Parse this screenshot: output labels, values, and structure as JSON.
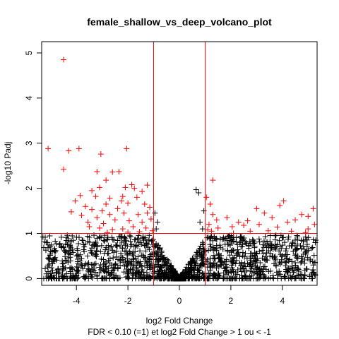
{
  "chart_data": {
    "type": "scatter",
    "title": "female_shallow_vs_deep_volcano_plot",
    "xlabel": "log2 Fold Change",
    "subtitle": "FDR < 0.10 (=1) et log2 Fold Change > 1 ou < -1",
    "ylabel": "-log10 Padj",
    "xlim": [
      -5.35,
      5.35
    ],
    "ylim": [
      -0.15,
      5.25
    ],
    "x_ticks": [
      "-4",
      "-2",
      "0",
      "2",
      "4"
    ],
    "y_ticks": [
      "0",
      "1",
      "2",
      "3",
      "4",
      "5"
    ],
    "thresholds": {
      "x": [
        -1,
        1
      ],
      "y": 1
    },
    "colors": {
      "significant": "#ff0000",
      "other": "#000000",
      "threshold_lines": "#ff0000",
      "axes": "#000000"
    },
    "marker": "plus",
    "series": [
      {
        "color": "#ff0000",
        "points": [
          [
            -4.5,
            4.85
          ],
          [
            -5.1,
            2.88
          ],
          [
            -4.3,
            2.83
          ],
          [
            -3.9,
            2.88
          ],
          [
            -4.5,
            2.42
          ],
          [
            -3.05,
            2.76
          ],
          [
            -2.05,
            2.88
          ],
          [
            -3.2,
            2.37
          ],
          [
            -2.6,
            2.36
          ],
          [
            -2.35,
            2.37
          ],
          [
            -2.85,
            2.18
          ],
          [
            -3.1,
            2.02
          ],
          [
            -2.1,
            2.02
          ],
          [
            -1.85,
            2.08
          ],
          [
            -1.75,
            2.0
          ],
          [
            -1.25,
            2.07
          ],
          [
            -3.4,
            1.95
          ],
          [
            -1.45,
            1.93
          ],
          [
            -3.85,
            1.84
          ],
          [
            -4.05,
            1.72
          ],
          [
            -3.25,
            1.82
          ],
          [
            -2.7,
            1.78
          ],
          [
            -2.2,
            1.82
          ],
          [
            -1.65,
            1.8
          ],
          [
            -2.85,
            1.65
          ],
          [
            -3.65,
            1.6
          ],
          [
            -2.0,
            1.67
          ],
          [
            -2.25,
            1.72
          ],
          [
            -3.4,
            1.53
          ],
          [
            -4.2,
            1.48
          ],
          [
            -3.0,
            1.5
          ],
          [
            -2.4,
            1.55
          ],
          [
            -1.15,
            1.58
          ],
          [
            -1.35,
            1.65
          ],
          [
            -3.8,
            1.4
          ],
          [
            -3.2,
            1.35
          ],
          [
            -2.7,
            1.42
          ],
          [
            -2.15,
            1.45
          ],
          [
            -1.6,
            1.42
          ],
          [
            -1.25,
            1.45
          ],
          [
            -3.55,
            1.25
          ],
          [
            -2.95,
            1.22
          ],
          [
            -2.5,
            1.3
          ],
          [
            -1.95,
            1.28
          ],
          [
            -1.45,
            1.25
          ],
          [
            -1.1,
            1.32
          ],
          [
            -3.5,
            1.15
          ],
          [
            -3.1,
            1.12
          ],
          [
            -2.6,
            1.08
          ],
          [
            -2.2,
            1.1
          ],
          [
            -1.8,
            1.15
          ],
          [
            -1.3,
            1.12
          ],
          [
            -1.05,
            1.06
          ],
          [
            -2.8,
            1.02
          ],
          [
            -2.0,
            1.03
          ],
          [
            -1.55,
            1.04
          ],
          [
            1.3,
            2.18
          ],
          [
            1.05,
            1.8
          ],
          [
            1.2,
            1.65
          ],
          [
            1.3,
            1.42
          ],
          [
            1.45,
            1.3
          ],
          [
            1.15,
            1.2
          ],
          [
            1.5,
            1.12
          ],
          [
            1.1,
            1.08
          ],
          [
            1.25,
            1.05
          ],
          [
            1.85,
            1.35
          ],
          [
            2.05,
            1.15
          ],
          [
            2.3,
            1.25
          ],
          [
            2.5,
            1.18
          ],
          [
            2.75,
            1.05
          ],
          [
            2.65,
            1.28
          ],
          [
            3.0,
            1.55
          ],
          [
            3.3,
            1.45
          ],
          [
            3.1,
            1.2
          ],
          [
            3.6,
            1.35
          ],
          [
            3.9,
            1.62
          ],
          [
            4.05,
            1.72
          ],
          [
            4.2,
            1.25
          ],
          [
            3.8,
            1.14
          ],
          [
            4.5,
            1.3
          ],
          [
            4.75,
            1.42
          ],
          [
            5.0,
            1.38
          ],
          [
            5.2,
            1.55
          ],
          [
            5.0,
            1.1
          ],
          [
            4.35,
            1.05
          ],
          [
            3.45,
            1.06
          ],
          [
            5.25,
            1.2
          ],
          [
            4.9,
            1.02
          ],
          [
            2.1,
            1.0
          ]
        ]
      },
      {
        "color": "#000000",
        "points": [
          [
            -5.3,
            0.92
          ],
          [
            -4.35,
            0.75
          ],
          [
            -4.25,
            0.7
          ],
          [
            -3.95,
            0.5
          ],
          [
            -3.55,
            0.82
          ],
          [
            -3.45,
            0.62
          ],
          [
            -3.7,
            0.6
          ],
          [
            -0.95,
            1.45
          ],
          [
            -0.85,
            1.25
          ],
          [
            -0.9,
            1.1
          ],
          [
            0.65,
            1.97
          ],
          [
            0.75,
            1.9
          ],
          [
            0.95,
            1.5
          ],
          [
            0.8,
            1.25
          ],
          [
            0.9,
            1.1
          ],
          [
            4.1,
            0.5
          ],
          [
            4.85,
            0.65
          ],
          [
            5.2,
            0.3
          ],
          [
            4.5,
            0.35
          ],
          [
            5.3,
            0.85
          ]
        ]
      }
    ],
    "cloud": "dense black cloud of non-significant genes near 0, spreading to about ±5 with -log10 Padj up to 1"
  }
}
